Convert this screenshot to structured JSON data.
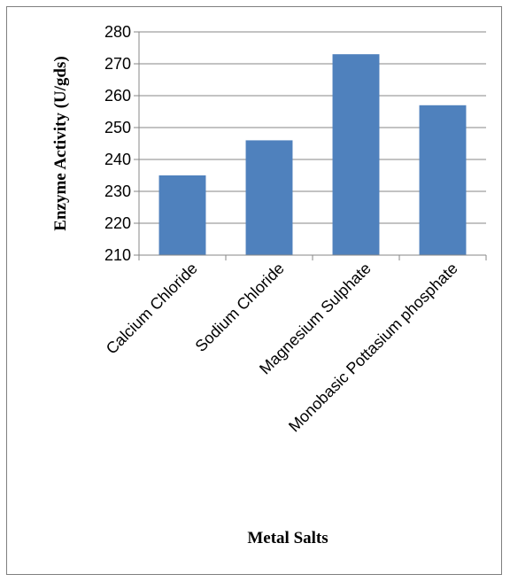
{
  "chart_data": {
    "type": "bar",
    "categories": [
      "Calcium Chloride",
      "Sodium Chloride",
      "Magnesium Sulphate",
      "Monobasic Pottasium phosphate"
    ],
    "values": [
      235,
      246,
      273,
      257
    ],
    "xlabel": "Metal Salts",
    "ylabel": "Enzyme Activity (U/gds)",
    "ylim": [
      210,
      280
    ],
    "yticks": [
      210,
      220,
      230,
      240,
      250,
      260,
      270,
      280
    ],
    "grid": true,
    "legend": "none",
    "colors": {
      "bar": "#4f81bd",
      "grid": "#878787",
      "axis": "#878787"
    }
  }
}
